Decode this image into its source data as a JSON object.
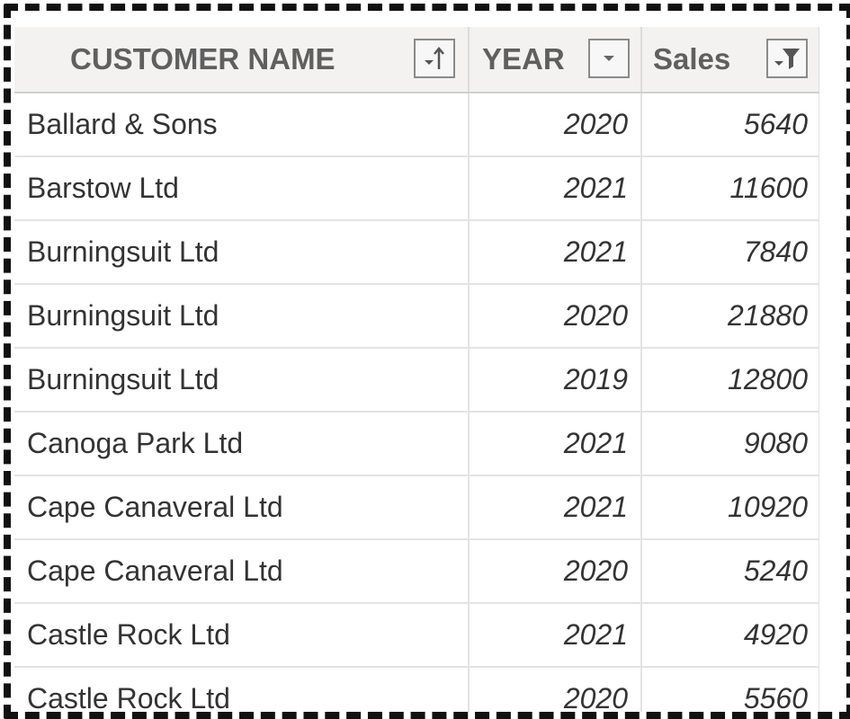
{
  "table": {
    "columns": [
      {
        "label": "CUSTOMER NAME",
        "control": "sort-ascending"
      },
      {
        "label": "YEAR",
        "control": "dropdown"
      },
      {
        "label": "Sales",
        "control": "filter"
      }
    ],
    "rows": [
      {
        "customer": "Ballard & Sons",
        "year": "2020",
        "sales": "5640"
      },
      {
        "customer": "Barstow Ltd",
        "year": "2021",
        "sales": "11600"
      },
      {
        "customer": "Burningsuit Ltd",
        "year": "2021",
        "sales": "7840"
      },
      {
        "customer": "Burningsuit Ltd",
        "year": "2020",
        "sales": "21880"
      },
      {
        "customer": "Burningsuit Ltd",
        "year": "2019",
        "sales": "12800"
      },
      {
        "customer": "Canoga Park Ltd",
        "year": "2021",
        "sales": "9080"
      },
      {
        "customer": "Cape Canaveral Ltd",
        "year": "2021",
        "sales": "10920"
      },
      {
        "customer": "Cape Canaveral Ltd",
        "year": "2020",
        "sales": "5240"
      },
      {
        "customer": "Castle Rock Ltd",
        "year": "2021",
        "sales": "4920"
      },
      {
        "customer": "Castle Rock Ltd",
        "year": "2020",
        "sales": "5560"
      }
    ]
  },
  "colors": {
    "header_background": "#f3f2f1",
    "header_text": "#5f5f5f",
    "cell_text": "#333333",
    "gridline": "#e3e3e3",
    "frame_border": "#111111"
  }
}
